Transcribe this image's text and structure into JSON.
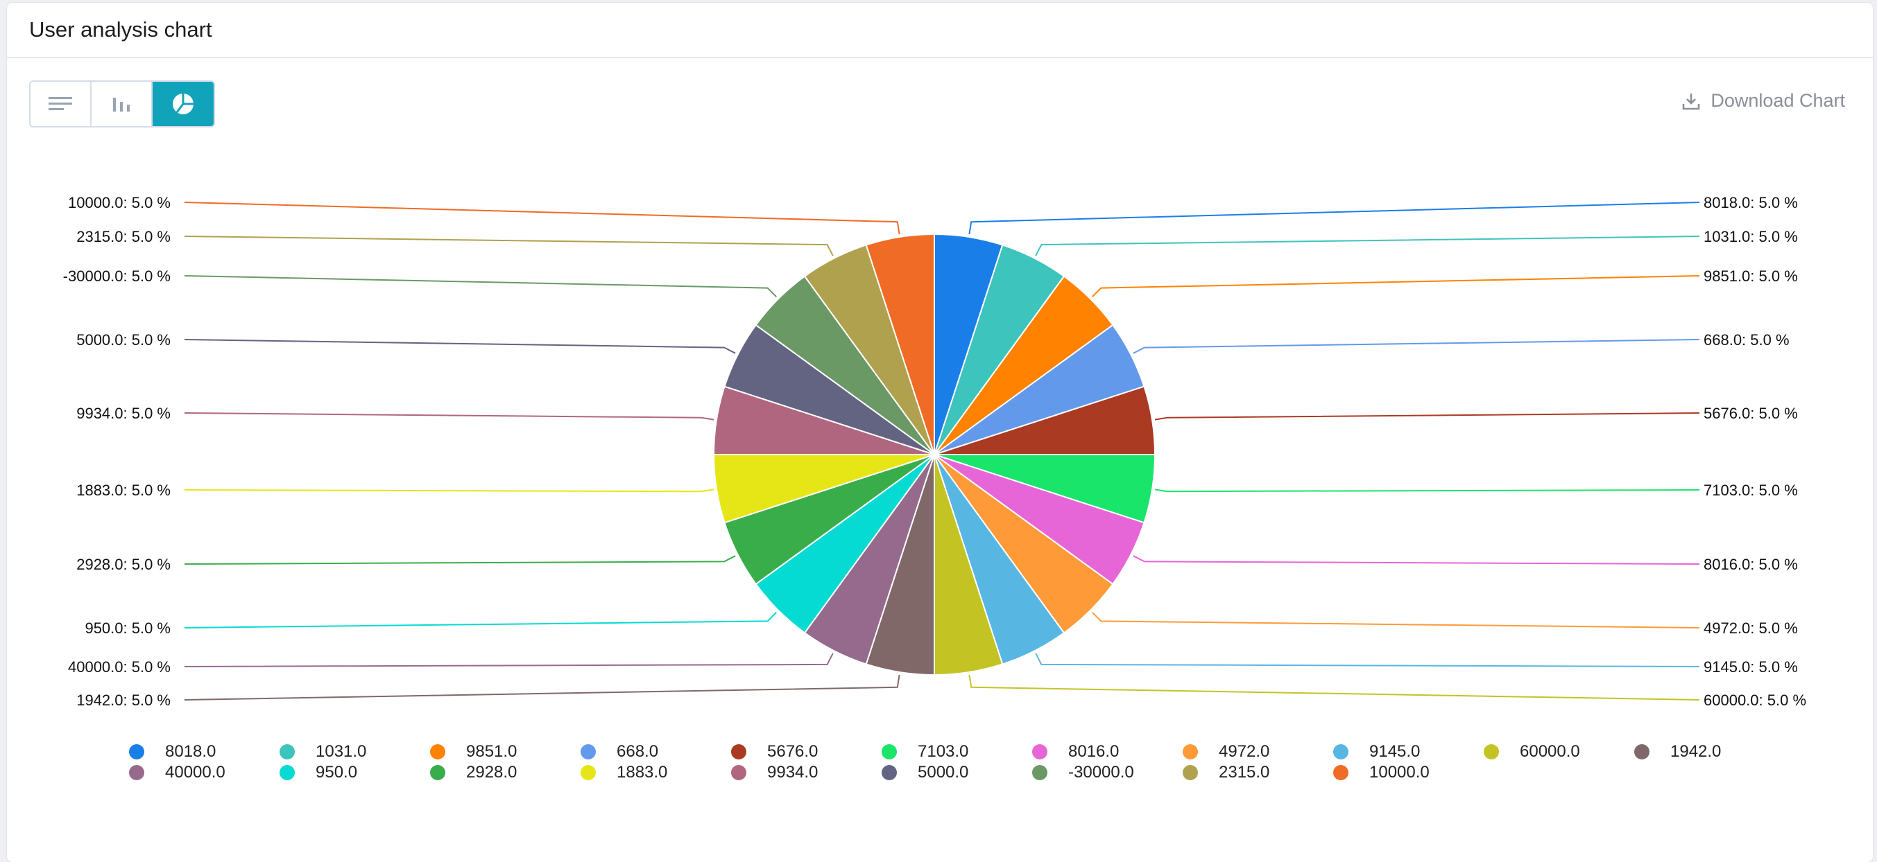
{
  "header": {
    "title": "User analysis chart"
  },
  "toolbar": {
    "views": [
      {
        "name": "list-view",
        "icon": "list-icon",
        "active": false
      },
      {
        "name": "bar-view",
        "icon": "bar-chart-icon",
        "active": false
      },
      {
        "name": "pie-view",
        "icon": "pie-chart-icon",
        "active": true
      }
    ],
    "download_label": "Download Chart",
    "download_icon": "download-icon"
  },
  "colors": {
    "accent": "#11a3b9"
  },
  "chart_data": {
    "type": "pie",
    "title": "",
    "categories": [
      "8018.0",
      "1031.0",
      "9851.0",
      "668.0",
      "5676.0",
      "7103.0",
      "8016.0",
      "4972.0",
      "9145.0",
      "60000.0",
      "1942.0",
      "40000.0",
      "950.0",
      "2928.0",
      "1883.0",
      "9934.0",
      "5000.0",
      "-30000.0",
      "2315.0",
      "10000.0"
    ],
    "values": [
      5.0,
      5.0,
      5.0,
      5.0,
      5.0,
      5.0,
      5.0,
      5.0,
      5.0,
      5.0,
      5.0,
      5.0,
      5.0,
      5.0,
      5.0,
      5.0,
      5.0,
      5.0,
      5.0,
      5.0
    ],
    "labels": [
      "8018.0: 5.0 %",
      "1031.0: 5.0 %",
      "9851.0: 5.0 %",
      "668.0: 5.0 %",
      "5676.0: 5.0 %",
      "7103.0: 5.0 %",
      "8016.0: 5.0 %",
      "4972.0: 5.0 %",
      "9145.0: 5.0 %",
      "60000.0: 5.0 %",
      "1942.0: 5.0 %",
      "40000.0: 5.0 %",
      "950.0: 5.0 %",
      "2928.0: 5.0 %",
      "1883.0: 5.0 %",
      "9934.0: 5.0 %",
      "5000.0: 5.0 %",
      "-30000.0: 5.0 %",
      "2315.0: 5.0 %",
      "10000.0: 5.0 %"
    ],
    "colors": [
      "#1a7ee9",
      "#3dc4bc",
      "#ff8200",
      "#6399eb",
      "#aa3a22",
      "#18e56a",
      "#e666d7",
      "#ff9a38",
      "#58b6e3",
      "#c3c424",
      "#806868",
      "#966a8d",
      "#05dbd3",
      "#3aad4b",
      "#e6e617",
      "#b16680",
      "#636382",
      "#6a9966",
      "#b0a14e",
      "#f06b25"
    ],
    "legend": "bottom"
  }
}
